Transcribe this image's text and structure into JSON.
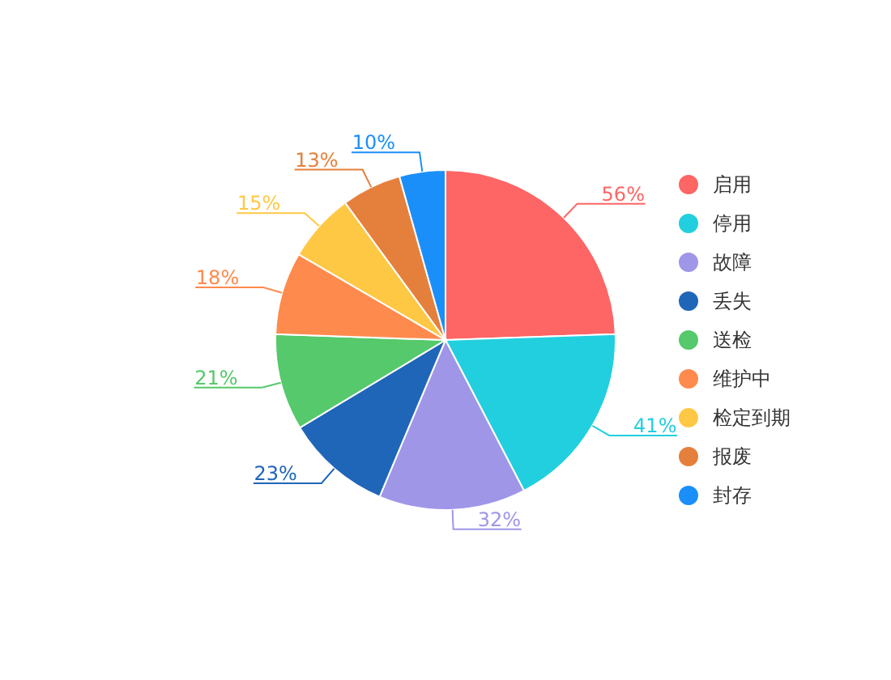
{
  "chart_data": {
    "type": "pie",
    "categories": [
      "启用",
      "停用",
      "故障",
      "丢失",
      "送检",
      "维护中",
      "检定到期",
      "报废",
      "封存"
    ],
    "values": [
      56,
      41,
      32,
      23,
      21,
      18,
      15,
      13,
      10
    ],
    "colors": [
      "#fe6565",
      "#22cfdf",
      "#9f96e8",
      "#1f66b8",
      "#55c96b",
      "#ff8a4d",
      "#ffc844",
      "#e5803c",
      "#1b8ff9"
    ],
    "value_labels": [
      "56%",
      "41%",
      "32%",
      "23%",
      "21%",
      "18%",
      "15%",
      "13%",
      "10%"
    ],
    "legend": "right"
  }
}
